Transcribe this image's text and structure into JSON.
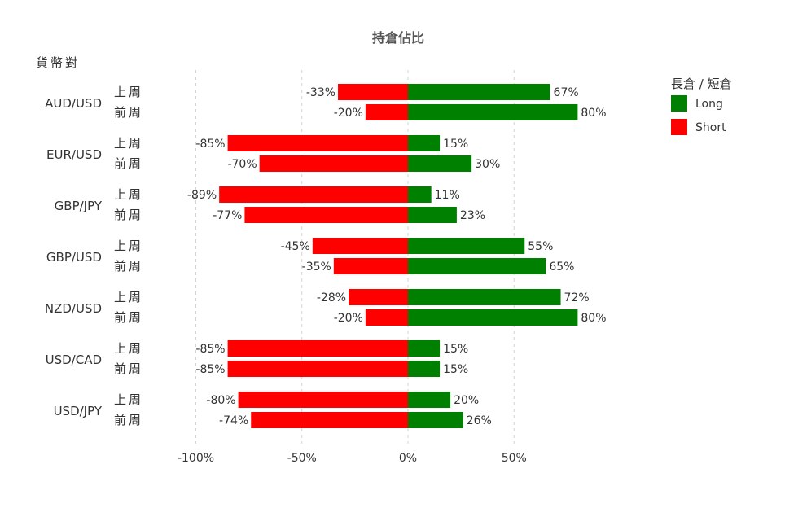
{
  "chart_data": {
    "type": "bar",
    "orientation": "horizontal-diverging",
    "title": "持倉佔比",
    "row_axis_label": "貨幣對",
    "legend_title": "長倉 / 短倉",
    "legend_position": "top-right",
    "colors": {
      "Long": "#008000",
      "Short": "#ff0000"
    },
    "xlim": [
      -100,
      80
    ],
    "x_ticks": [
      {
        "value": -100,
        "label": "-100%"
      },
      {
        "value": -50,
        "label": "-50%"
      },
      {
        "value": 0,
        "label": "0%"
      },
      {
        "value": 50,
        "label": "50%"
      }
    ],
    "grid": true,
    "period_labels": [
      "上周",
      "前周"
    ],
    "series": [
      {
        "name": "Long"
      },
      {
        "name": "Short"
      }
    ],
    "groups": [
      {
        "pair": "AUD/USD",
        "rows": [
          {
            "period": "上周",
            "long": 67,
            "short": -33,
            "long_label": "67%",
            "short_label": "-33%"
          },
          {
            "period": "前周",
            "long": 80,
            "short": -20,
            "long_label": "80%",
            "short_label": "-20%"
          }
        ]
      },
      {
        "pair": "EUR/USD",
        "rows": [
          {
            "period": "上周",
            "long": 15,
            "short": -85,
            "long_label": "15%",
            "short_label": "-85%"
          },
          {
            "period": "前周",
            "long": 30,
            "short": -70,
            "long_label": "30%",
            "short_label": "-70%"
          }
        ]
      },
      {
        "pair": "GBP/JPY",
        "rows": [
          {
            "period": "上周",
            "long": 11,
            "short": -89,
            "long_label": "11%",
            "short_label": "-89%"
          },
          {
            "period": "前周",
            "long": 23,
            "short": -77,
            "long_label": "23%",
            "short_label": "-77%"
          }
        ]
      },
      {
        "pair": "GBP/USD",
        "rows": [
          {
            "period": "上周",
            "long": 55,
            "short": -45,
            "long_label": "55%",
            "short_label": "-45%"
          },
          {
            "period": "前周",
            "long": 65,
            "short": -35,
            "long_label": "65%",
            "short_label": "-35%"
          }
        ]
      },
      {
        "pair": "NZD/USD",
        "rows": [
          {
            "period": "上周",
            "long": 72,
            "short": -28,
            "long_label": "72%",
            "short_label": "-28%"
          },
          {
            "period": "前周",
            "long": 80,
            "short": -20,
            "long_label": "80%",
            "short_label": "-20%"
          }
        ]
      },
      {
        "pair": "USD/CAD",
        "rows": [
          {
            "period": "上周",
            "long": 15,
            "short": -85,
            "long_label": "15%",
            "short_label": "-85%"
          },
          {
            "period": "前周",
            "long": 15,
            "short": -85,
            "long_label": "15%",
            "short_label": "-85%"
          }
        ]
      },
      {
        "pair": "USD/JPY",
        "rows": [
          {
            "period": "上周",
            "long": 20,
            "short": -80,
            "long_label": "20%",
            "short_label": "-80%"
          },
          {
            "period": "前周",
            "long": 26,
            "short": -74,
            "long_label": "26%",
            "short_label": "-74%"
          }
        ]
      }
    ]
  }
}
